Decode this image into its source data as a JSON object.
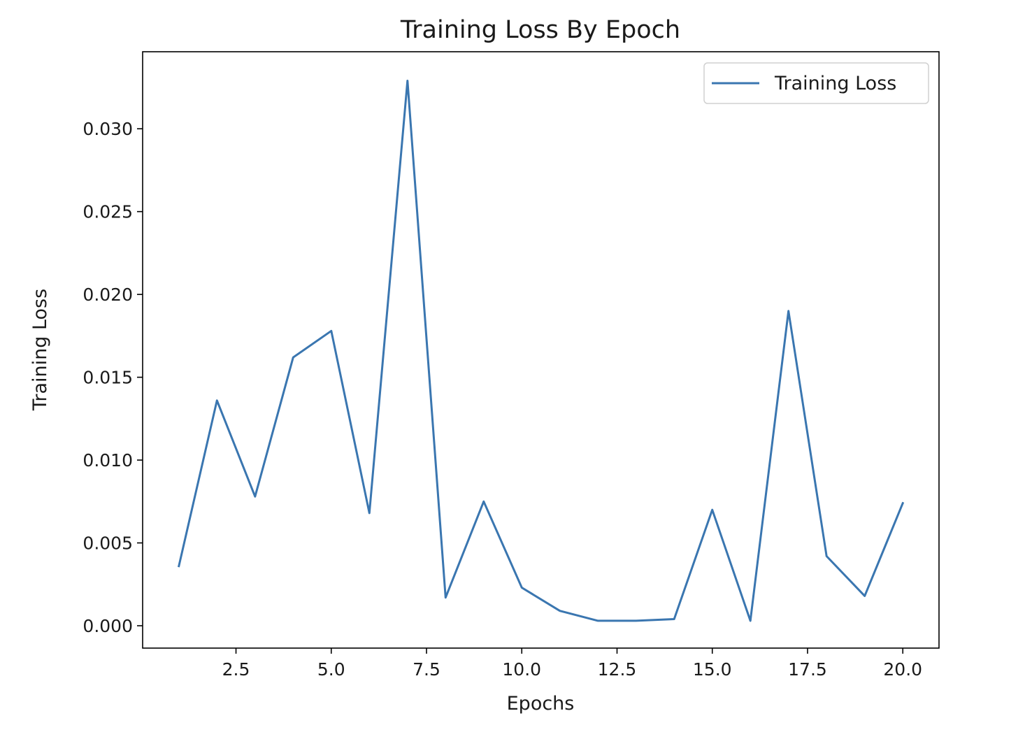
{
  "chart_data": {
    "type": "line",
    "title": "Training Loss By Epoch",
    "xlabel": "Epochs",
    "ylabel": "Training Loss",
    "x": [
      1,
      2,
      3,
      4,
      5,
      6,
      7,
      8,
      9,
      10,
      11,
      12,
      13,
      14,
      15,
      16,
      17,
      18,
      19,
      20
    ],
    "series": [
      {
        "name": "Training Loss",
        "color": "#3a76b0",
        "values": [
          0.0036,
          0.0136,
          0.0078,
          0.0162,
          0.0178,
          0.0068,
          0.0329,
          0.0017,
          0.0075,
          0.0023,
          0.0009,
          0.0003,
          0.0003,
          0.0004,
          0.007,
          0.0003,
          0.019,
          0.0042,
          0.0018,
          0.0074
        ]
      }
    ],
    "xlim": [
      0.05,
      20.95
    ],
    "ylim": [
      -0.00135,
      0.03465
    ],
    "x_ticks": [
      2.5,
      5.0,
      7.5,
      10.0,
      12.5,
      15.0,
      17.5,
      20.0
    ],
    "x_tick_labels": [
      "2.5",
      "5.0",
      "7.5",
      "10.0",
      "12.5",
      "15.0",
      "17.5",
      "20.0"
    ],
    "y_ticks": [
      0.0,
      0.005,
      0.01,
      0.015,
      0.02,
      0.025,
      0.03
    ],
    "y_tick_labels": [
      "0.000",
      "0.005",
      "0.010",
      "0.015",
      "0.020",
      "0.025",
      "0.030"
    ],
    "grid": false,
    "legend_position": "top-right"
  }
}
